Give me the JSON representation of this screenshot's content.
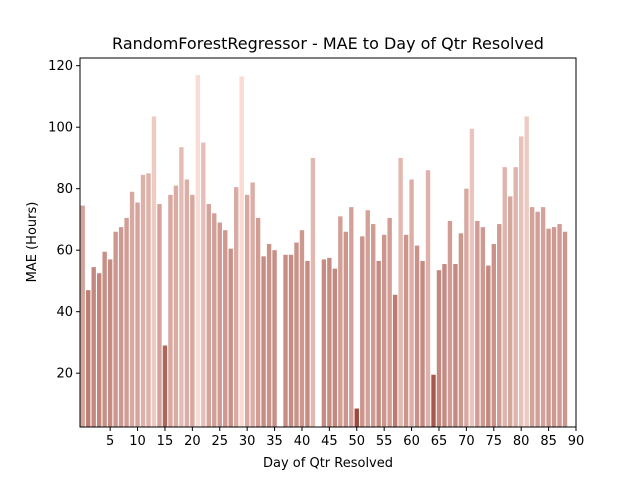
{
  "chart_data": {
    "type": "bar",
    "title": "RandomForestRegressor - MAE to Day of Qtr Resolved",
    "xlabel": "Day of Qtr Resolved",
    "ylabel": "MAE (Hours)",
    "xlim": [
      -0.5,
      90
    ],
    "ylim": [
      2.5,
      122.5
    ],
    "x_ticks": [
      5,
      10,
      15,
      20,
      25,
      30,
      35,
      40,
      45,
      50,
      55,
      60,
      65,
      70,
      75,
      80,
      85,
      90
    ],
    "y_ticks": [
      20,
      40,
      60,
      80,
      100,
      120
    ],
    "grid": false,
    "legend": "none",
    "color_low": "#9c4a3f",
    "color_high": "#f9dcd5",
    "x": [
      0,
      1,
      2,
      3,
      4,
      5,
      6,
      7,
      8,
      9,
      10,
      11,
      12,
      13,
      14,
      15,
      16,
      17,
      18,
      19,
      20,
      21,
      22,
      23,
      24,
      25,
      26,
      27,
      28,
      29,
      30,
      31,
      32,
      33,
      34,
      35,
      36,
      37,
      38,
      39,
      40,
      41,
      42,
      43,
      44,
      45,
      46,
      47,
      48,
      49,
      50,
      51,
      52,
      53,
      54,
      55,
      56,
      57,
      58,
      59,
      60,
      61,
      62,
      63,
      64,
      65,
      66,
      67,
      68,
      69,
      70,
      71,
      72,
      73,
      74,
      75,
      76,
      77,
      78,
      79,
      80,
      81,
      82,
      83,
      84,
      85,
      86,
      87,
      88
    ],
    "values": [
      74.5,
      47,
      54.5,
      52.5,
      59.5,
      57,
      66,
      67.5,
      70.5,
      79,
      75.5,
      84.5,
      85,
      103.5,
      75,
      29,
      78,
      81,
      93.5,
      83,
      78,
      117,
      95,
      75,
      72,
      69,
      66.5,
      60.5,
      80.5,
      116.5,
      78,
      82,
      70.5,
      58,
      62,
      60,
      null,
      58.5,
      58.5,
      62.5,
      66.5,
      56.5,
      90,
      null,
      57,
      57.5,
      54,
      71,
      66,
      74,
      8.5,
      64.5,
      73,
      68.5,
      56.5,
      65,
      70.5,
      45.5,
      90,
      65,
      83,
      61.5,
      56.5,
      86,
      19.5,
      53.5,
      55.5,
      69.5,
      55.5,
      65.5,
      80,
      99.5,
      69.5,
      67.5,
      55,
      62,
      68.5,
      87,
      77.5,
      87,
      97,
      103.5,
      74,
      72.5,
      74,
      67,
      67.5,
      68.5,
      66
    ]
  }
}
